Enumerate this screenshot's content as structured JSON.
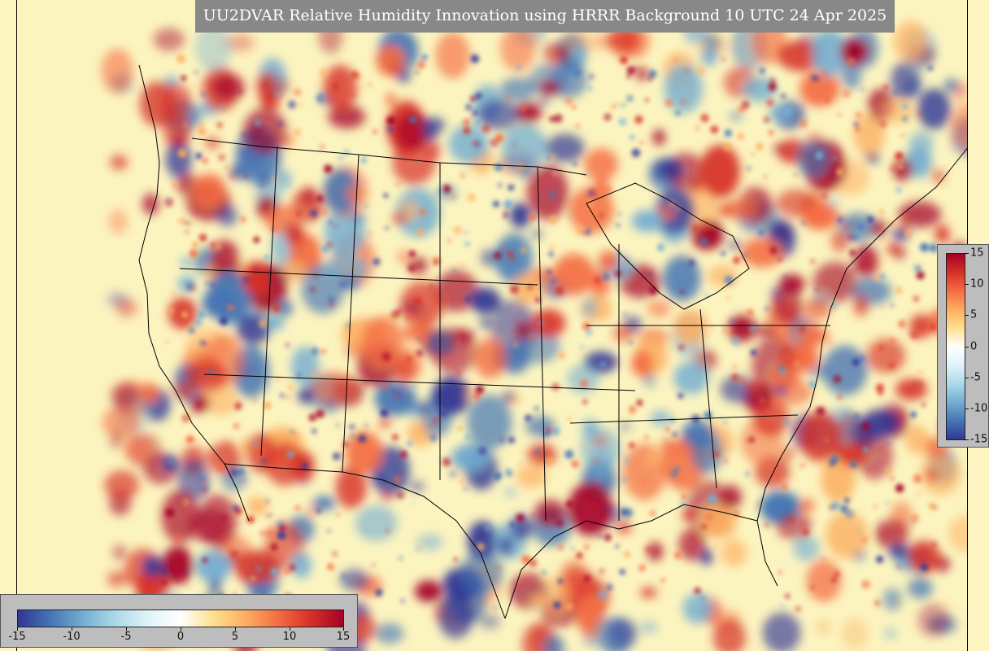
{
  "title": "UU2DVAR Relative Humidity Innovation using HRRR Background 10 UTC 24 Apr 2025",
  "colorbar": {
    "min": -15,
    "max": 15,
    "ticks": [
      "15",
      "10",
      "5",
      "0",
      "-5",
      "-10",
      "-15"
    ],
    "ticks_h": [
      "-15",
      "-10",
      "-5",
      "0",
      "5",
      "10",
      "15"
    ],
    "colors": [
      "#313695",
      "#4575b4",
      "#74add1",
      "#abd9e9",
      "#e0f3f8",
      "#ffffff",
      "#fee090",
      "#fdae61",
      "#f46d43",
      "#d73027",
      "#a50026"
    ]
  },
  "map": {
    "background_color": "#fcf4bf",
    "border_color": "#000000",
    "positive_color": "#b2182b",
    "negative_color": "#2166ac"
  }
}
